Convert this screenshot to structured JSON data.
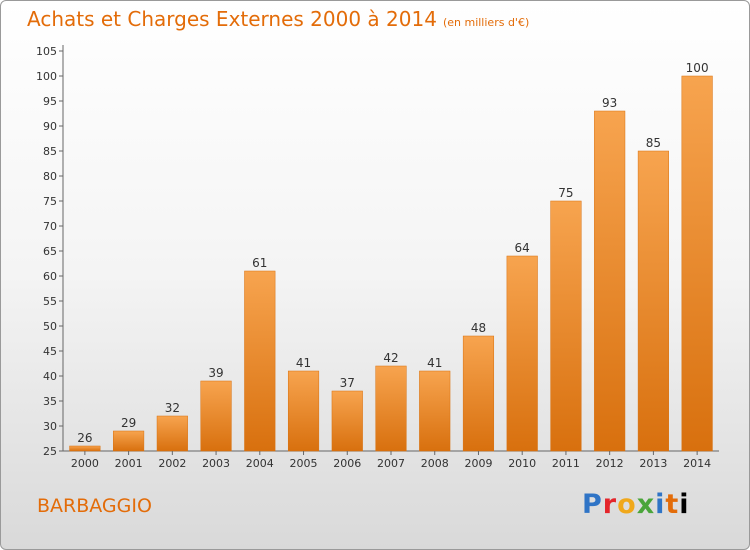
{
  "title": "Achats et Charges Externes 2000 à 2014",
  "unit": "(en milliers d'€)",
  "city": "BARBAGGIO",
  "logo": {
    "letters": [
      "P",
      "r",
      "o",
      "x",
      "i",
      "t",
      "i"
    ]
  },
  "colors": {
    "bar": "#f0821e",
    "bar_light": "#f7a44f",
    "bar_dark": "#d8700e",
    "title": "#e36c09"
  },
  "chart_data": {
    "type": "bar",
    "title": "Achats et Charges Externes 2000 à 2014",
    "subtitle": "(en milliers d'€)",
    "categories": [
      "2000",
      "2001",
      "2002",
      "2003",
      "2004",
      "2005",
      "2006",
      "2007",
      "2008",
      "2009",
      "2010",
      "2011",
      "2012",
      "2013",
      "2014"
    ],
    "values": [
      26,
      29,
      32,
      39,
      61,
      41,
      37,
      42,
      41,
      48,
      64,
      75,
      93,
      85,
      100
    ],
    "ylim": [
      25,
      105
    ],
    "yticks": [
      25,
      30,
      35,
      40,
      45,
      50,
      55,
      60,
      65,
      70,
      75,
      80,
      85,
      90,
      95,
      100,
      105
    ],
    "grid": false,
    "legend": "none"
  }
}
